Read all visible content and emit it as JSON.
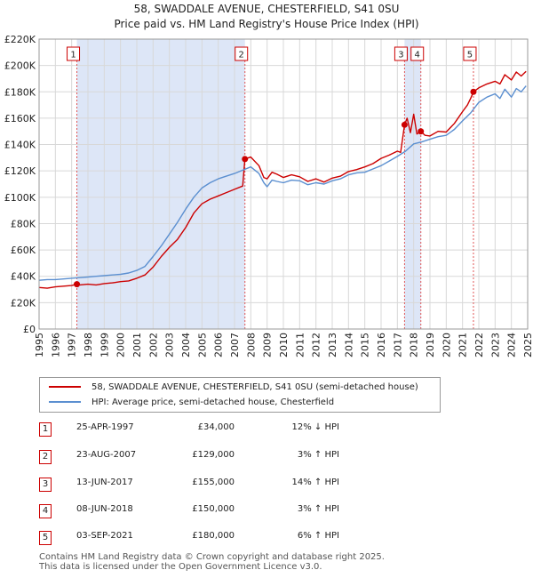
{
  "chart_data": {
    "type": "line",
    "title": "58, SWADDALE AVENUE, CHESTERFIELD, S41 0SU",
    "subtitle": "Price paid vs. HM Land Registry's House Price Index (HPI)",
    "xlim": [
      1995,
      2025
    ],
    "ylim": [
      0,
      220000
    ],
    "y_ticks": [
      0,
      20000,
      40000,
      60000,
      80000,
      100000,
      120000,
      140000,
      160000,
      180000,
      200000,
      220000
    ],
    "y_tick_labels": [
      "£0",
      "£20K",
      "£40K",
      "£60K",
      "£80K",
      "£100K",
      "£120K",
      "£140K",
      "£160K",
      "£180K",
      "£200K",
      "£220K"
    ],
    "x_ticks": [
      1995,
      1996,
      1997,
      1998,
      1999,
      2000,
      2001,
      2002,
      2003,
      2004,
      2005,
      2006,
      2007,
      2008,
      2009,
      2010,
      2011,
      2012,
      2013,
      2014,
      2015,
      2016,
      2017,
      2018,
      2019,
      2020,
      2021,
      2022,
      2023,
      2024,
      2025
    ],
    "x_tick_labels": [
      "1995",
      "1996",
      "1997",
      "1998",
      "1999",
      "2000",
      "2001",
      "2002",
      "2003",
      "2004",
      "2005",
      "2006",
      "2007",
      "2008",
      "2009",
      "2010",
      "2011",
      "2012",
      "2013",
      "2014",
      "2015",
      "2016",
      "2017",
      "2018",
      "2019",
      "2020",
      "2021",
      "2022",
      "2023",
      "2024",
      "2025"
    ],
    "series": [
      {
        "name": "58, SWADDALE AVENUE, CHESTERFIELD, S41 0SU (semi-detached house)",
        "color": "#cc0000",
        "x": [
          1995.0,
          1995.5,
          1996.0,
          1996.5,
          1997.0,
          1997.32,
          1997.5,
          1998.0,
          1998.5,
          1999.0,
          1999.5,
          2000.0,
          2000.5,
          2001.0,
          2001.5,
          2002.0,
          2002.5,
          2003.0,
          2003.5,
          2004.0,
          2004.5,
          2005.0,
          2005.5,
          2006.0,
          2006.5,
          2007.0,
          2007.5,
          2007.64,
          2008.0,
          2008.5,
          2008.8,
          2009.0,
          2009.3,
          2009.6,
          2010.0,
          2010.5,
          2011.0,
          2011.5,
          2012.0,
          2012.5,
          2013.0,
          2013.5,
          2014.0,
          2014.5,
          2015.0,
          2015.5,
          2016.0,
          2016.5,
          2017.0,
          2017.2,
          2017.44,
          2017.6,
          2017.8,
          2018.0,
          2018.2,
          2018.44,
          2018.7,
          2019.0,
          2019.5,
          2020.0,
          2020.5,
          2021.0,
          2021.3,
          2021.5,
          2021.67,
          2022.0,
          2022.5,
          2023.0,
          2023.3,
          2023.6,
          2024.0,
          2024.3,
          2024.6,
          2024.9
        ],
        "values": [
          31500,
          31000,
          32000,
          32500,
          33000,
          34000,
          33500,
          34000,
          33500,
          34500,
          35000,
          36000,
          36500,
          38500,
          41000,
          47000,
          55000,
          62000,
          68000,
          77000,
          88000,
          95000,
          98500,
          101000,
          103500,
          106000,
          108500,
          129000,
          130500,
          124000,
          115000,
          114000,
          119000,
          117500,
          115000,
          117000,
          115500,
          112000,
          114000,
          111500,
          114500,
          116000,
          119500,
          121000,
          123000,
          125500,
          129500,
          132000,
          135000,
          134000,
          155000,
          160000,
          149000,
          163000,
          148000,
          150000,
          147000,
          146500,
          150000,
          149500,
          156000,
          165000,
          170000,
          175000,
          180000,
          183000,
          186000,
          188000,
          186000,
          193000,
          189000,
          195000,
          192000,
          195500
        ]
      },
      {
        "name": "HPI: Average price, semi-detached house, Chesterfield",
        "color": "#5b8fd0",
        "x": [
          1995.0,
          1995.5,
          1996.0,
          1996.5,
          1997.0,
          1997.5,
          1998.0,
          1998.5,
          1999.0,
          1999.5,
          2000.0,
          2000.5,
          2001.0,
          2001.5,
          2002.0,
          2002.5,
          2003.0,
          2003.5,
          2004.0,
          2004.5,
          2005.0,
          2005.5,
          2006.0,
          2006.5,
          2007.0,
          2007.5,
          2008.0,
          2008.5,
          2008.8,
          2009.0,
          2009.3,
          2009.6,
          2010.0,
          2010.5,
          2011.0,
          2011.5,
          2012.0,
          2012.5,
          2013.0,
          2013.5,
          2014.0,
          2014.5,
          2015.0,
          2015.5,
          2016.0,
          2016.5,
          2017.0,
          2017.5,
          2018.0,
          2018.5,
          2019.0,
          2019.5,
          2020.0,
          2020.5,
          2021.0,
          2021.5,
          2022.0,
          2022.5,
          2023.0,
          2023.3,
          2023.6,
          2024.0,
          2024.3,
          2024.6,
          2024.9
        ],
        "values": [
          37000,
          37500,
          37500,
          38000,
          38500,
          39000,
          39500,
          40000,
          40500,
          41000,
          41500,
          42500,
          44500,
          47500,
          55000,
          63000,
          72000,
          81000,
          91000,
          100000,
          107000,
          111000,
          114000,
          116000,
          118000,
          120500,
          123000,
          118000,
          111000,
          108000,
          113000,
          112000,
          111000,
          113000,
          112500,
          109500,
          111000,
          110000,
          112500,
          114000,
          117000,
          118500,
          119000,
          121500,
          124000,
          127500,
          131000,
          135000,
          140500,
          142000,
          144000,
          146000,
          147000,
          151500,
          158000,
          164000,
          172000,
          176000,
          178500,
          175000,
          182000,
          176000,
          182500,
          180000,
          184500
        ]
      }
    ],
    "sales": [
      {
        "num": "1",
        "x": 1997.32,
        "value": 34000
      },
      {
        "num": "2",
        "x": 2007.64,
        "value": 129000
      },
      {
        "num": "3",
        "x": 2017.44,
        "value": 155000
      },
      {
        "num": "4",
        "x": 2018.44,
        "value": 150000
      },
      {
        "num": "5",
        "x": 2021.67,
        "value": 180000
      }
    ]
  },
  "legend": {
    "items": [
      {
        "label": "58, SWADDALE AVENUE, CHESTERFIELD, S41 0SU (semi-detached house)",
        "color": "#cc0000"
      },
      {
        "label": "HPI: Average price, semi-detached house, Chesterfield",
        "color": "#5b8fd0"
      }
    ]
  },
  "table": {
    "rows": [
      {
        "num": "1",
        "date": "25-APR-1997",
        "price": "£34,000",
        "hpi": "12% ↓ HPI"
      },
      {
        "num": "2",
        "date": "23-AUG-2007",
        "price": "£129,000",
        "hpi": "3% ↑ HPI"
      },
      {
        "num": "3",
        "date": "13-JUN-2017",
        "price": "£155,000",
        "hpi": "14% ↑ HPI"
      },
      {
        "num": "4",
        "date": "08-JUN-2018",
        "price": "£150,000",
        "hpi": "3% ↑ HPI"
      },
      {
        "num": "5",
        "date": "03-SEP-2021",
        "price": "£180,000",
        "hpi": "6% ↑ HPI"
      }
    ]
  },
  "footer": {
    "line1": "Contains HM Land Registry data © Crown copyright and database right 2025.",
    "line2": "This data is licensed under the Open Government Licence v3.0."
  }
}
